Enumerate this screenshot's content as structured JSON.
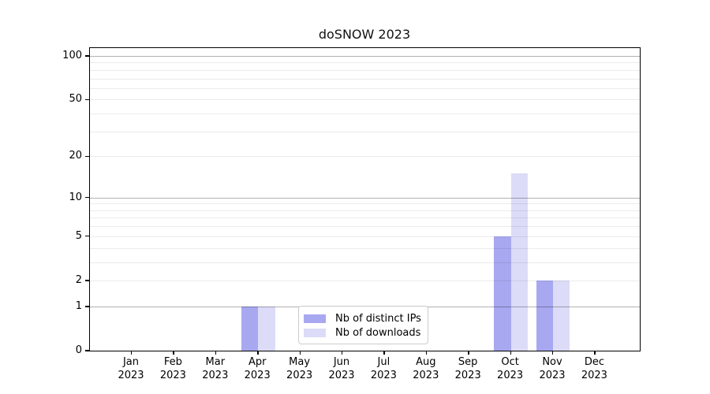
{
  "chart_data": {
    "type": "bar",
    "title": "doSNOW 2023",
    "categories": [
      "Jan 2023",
      "Feb 2023",
      "Mar 2023",
      "Apr 2023",
      "May 2023",
      "Jun 2023",
      "Jul 2023",
      "Aug 2023",
      "Sep 2023",
      "Oct 2023",
      "Nov 2023",
      "Dec 2023"
    ],
    "series": [
      {
        "name": "Nb of distinct IPs",
        "color": "#a8a8f0",
        "values": [
          0,
          0,
          0,
          1,
          0,
          0,
          0,
          0,
          0,
          5,
          2,
          0
        ]
      },
      {
        "name": "Nb of downloads",
        "color": "#dcdcf8",
        "values": [
          0,
          0,
          0,
          1,
          0,
          0,
          0,
          0,
          0,
          15,
          2,
          0
        ]
      }
    ],
    "yscale": "log1p",
    "yticks": [
      0,
      1,
      2,
      5,
      10,
      20,
      50,
      100
    ],
    "minor_gridlines": [
      2,
      3,
      4,
      5,
      6,
      7,
      8,
      9,
      20,
      30,
      40,
      50,
      60,
      70,
      80,
      90
    ],
    "major_gridlines": [
      1,
      10,
      100
    ],
    "ylim": [
      0,
      113
    ],
    "grid": "horizontal",
    "legend_position": "lower-center",
    "colors": {
      "major_grid": "#b3b3b3",
      "minor_grid": "#ebebeb",
      "spine": "#000000"
    }
  }
}
